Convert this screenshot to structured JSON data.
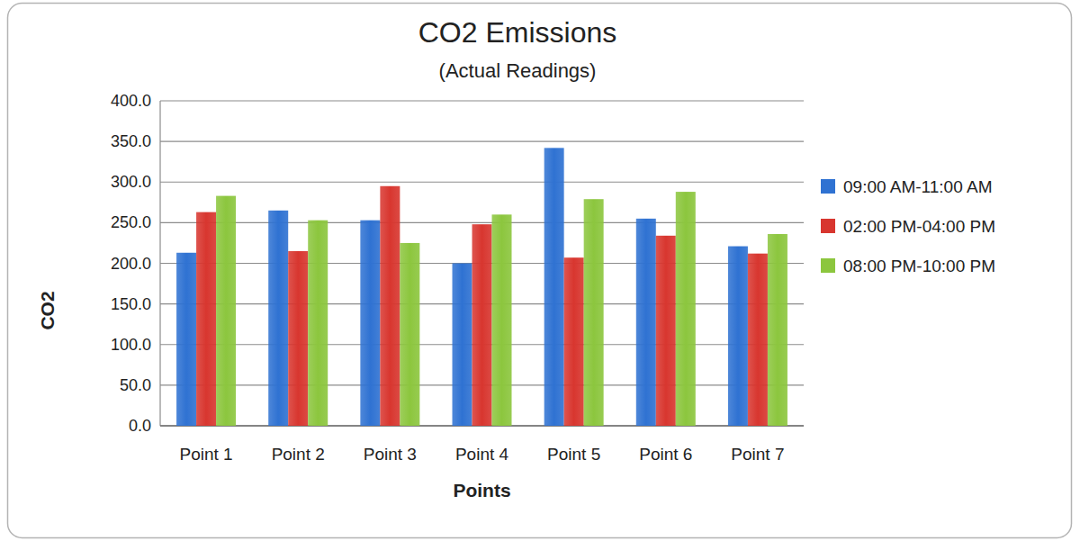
{
  "chart_data": {
    "type": "bar",
    "title": "CO2 Emissions",
    "subtitle": "(Actual Readings)",
    "x_label": "Points",
    "y_label": "CO2",
    "categories": [
      "Point 1",
      "Point 2",
      "Point 3",
      "Point 4",
      "Point 5",
      "Point 6",
      "Point 7"
    ],
    "series": [
      {
        "name": "09:00 AM-11:00 AM",
        "color": "#2f72d2",
        "values": [
          213,
          265,
          253,
          200,
          342,
          255,
          221
        ]
      },
      {
        "name": "02:00 PM-04:00 PM",
        "color": "#d8362f",
        "values": [
          263,
          215,
          295,
          248,
          207,
          234,
          212
        ]
      },
      {
        "name": "08:00 PM-10:00 PM",
        "color": "#8cc63e",
        "values": [
          283,
          253,
          225,
          260,
          279,
          288,
          236
        ]
      }
    ],
    "ylim": [
      0,
      400
    ],
    "yticks": [
      {
        "value": 0,
        "label": "0.0"
      },
      {
        "value": 50,
        "label": "50.0"
      },
      {
        "value": 100,
        "label": "100.0"
      },
      {
        "value": 150,
        "label": "150.0"
      },
      {
        "value": 200,
        "label": "200.0"
      },
      {
        "value": 250,
        "label": "250.0"
      },
      {
        "value": 300,
        "label": "300.0"
      },
      {
        "value": 350,
        "label": "350.0"
      },
      {
        "value": 400,
        "label": "400.0"
      }
    ],
    "grid": true,
    "legend": "right"
  }
}
